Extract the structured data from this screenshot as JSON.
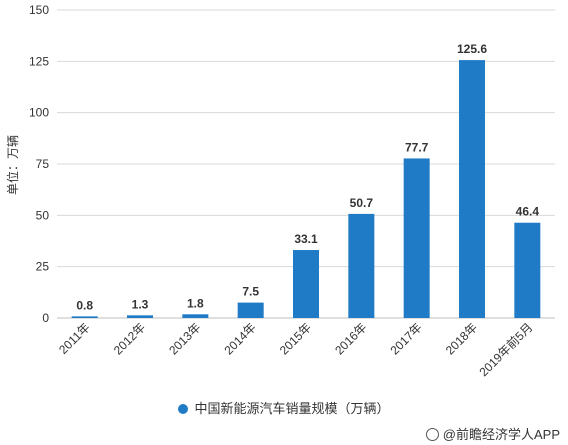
{
  "chart_data": {
    "type": "bar",
    "categories": [
      "2011年",
      "2012年",
      "2013年",
      "2014年",
      "2015年",
      "2016年",
      "2017年",
      "2018年",
      "2019年前5月"
    ],
    "values": [
      0.8,
      1.3,
      1.8,
      7.5,
      33.1,
      50.7,
      77.7,
      125.6,
      46.4
    ],
    "value_labels": [
      "0.8",
      "1.3",
      "1.8",
      "7.5",
      "33.1",
      "50.7",
      "77.7",
      "125.6",
      "46.4"
    ],
    "series": [
      {
        "name": "中国新能源汽车销量规模（万辆）",
        "values": [
          0.8,
          1.3,
          1.8,
          7.5,
          33.1,
          50.7,
          77.7,
          125.6,
          46.4
        ]
      }
    ],
    "ylabel": "单位：万辆",
    "ylim": [
      0,
      150
    ],
    "yticks": [
      0,
      25,
      50,
      75,
      100,
      125,
      150
    ],
    "grid": true,
    "legend_position": "bottom",
    "bar_color": "#1f7bc6",
    "grid_color": "#d9d9d9"
  },
  "legend": {
    "label": "中国新能源汽车销量规模（万辆）",
    "color": "#1f7bc6"
  },
  "watermark": {
    "text": "@前瞻经济学人APP"
  }
}
